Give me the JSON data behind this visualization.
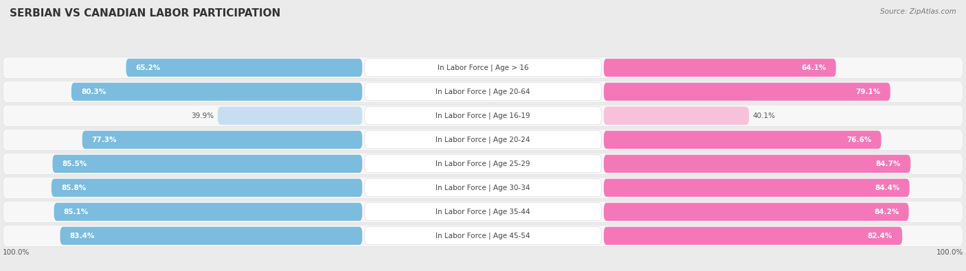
{
  "title": "SERBIAN VS CANADIAN LABOR PARTICIPATION",
  "source": "Source: ZipAtlas.com",
  "categories": [
    "In Labor Force | Age > 16",
    "In Labor Force | Age 20-64",
    "In Labor Force | Age 16-19",
    "In Labor Force | Age 20-24",
    "In Labor Force | Age 25-29",
    "In Labor Force | Age 30-34",
    "In Labor Force | Age 35-44",
    "In Labor Force | Age 45-54"
  ],
  "serbian_values": [
    65.2,
    80.3,
    39.9,
    77.3,
    85.5,
    85.8,
    85.1,
    83.4
  ],
  "canadian_values": [
    64.1,
    79.1,
    40.1,
    76.6,
    84.7,
    84.4,
    84.2,
    82.4
  ],
  "serbian_color": "#7BBCDF",
  "serbian_color_light": "#C5DFF0",
  "canadian_color": "#F478B8",
  "canadian_color_light": "#F9C0DA",
  "bg_color": "#EBEBEB",
  "row_bg": "#F7F7F7",
  "row_border": "#DDDDDD",
  "title_color": "#333333",
  "source_color": "#777777",
  "label_color": "#444444",
  "value_color_inside": "#FFFFFF",
  "value_color_outside": "#555555",
  "max_value": 100.0,
  "title_fontsize": 11,
  "label_fontsize": 7.5,
  "value_fontsize": 7.5,
  "legend_fontsize": 8.5,
  "source_fontsize": 7.5,
  "axis_label_fontsize": 7.5
}
